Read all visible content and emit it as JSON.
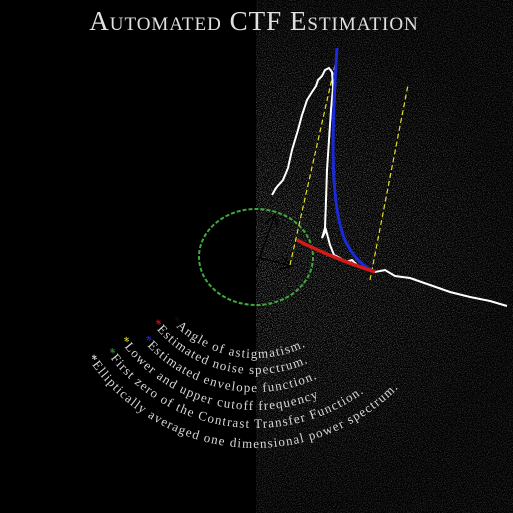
{
  "header": {
    "title": "Automated CTF Estimation"
  },
  "legend": {
    "items": [
      {
        "marker": "*",
        "text": "Angle of astigmatism."
      },
      {
        "marker": "*",
        "text": "Estimated noise spectrum."
      },
      {
        "marker": "*",
        "text": "Estimated envelope function."
      },
      {
        "marker": "*",
        "text": "Lower and upper cutoff frequency"
      },
      {
        "marker": "*",
        "text": "First zero of the Contrast Transfer Function."
      },
      {
        "marker": "*",
        "text": "Elliptically averaged one dimensional power spectrum."
      }
    ]
  }
}
